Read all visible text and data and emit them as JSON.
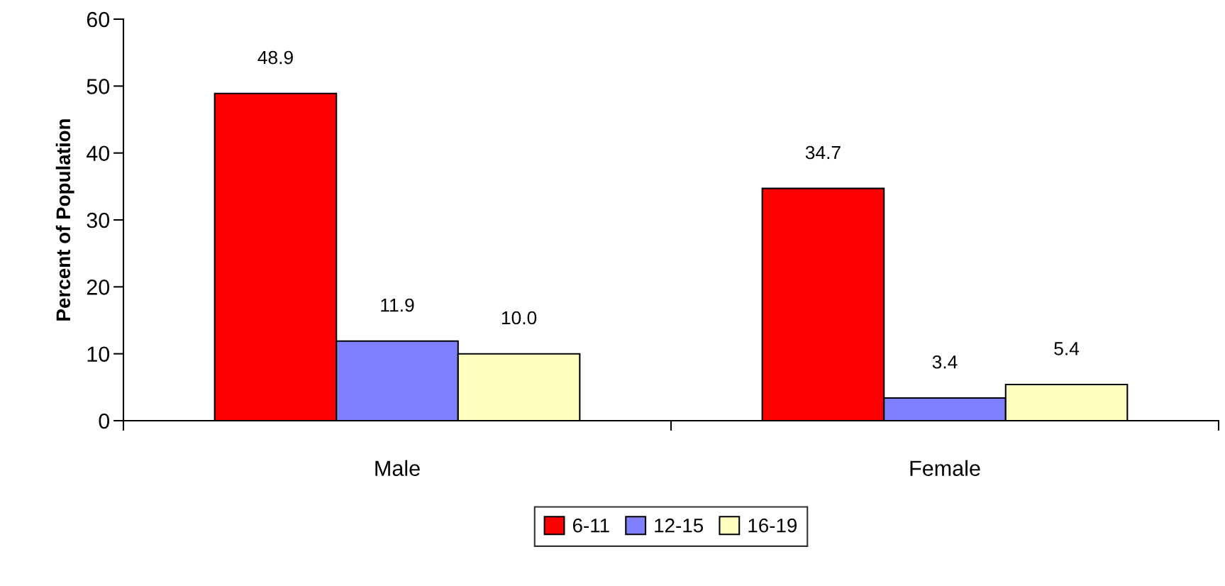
{
  "chart_data": {
    "type": "bar",
    "ylabel": "Percent of Population",
    "categories": [
      "Male",
      "Female"
    ],
    "series": [
      {
        "name": "6-11",
        "color": "#ff0000",
        "values": [
          48.9,
          34.7
        ],
        "value_labels": [
          "48.9",
          "34.7"
        ]
      },
      {
        "name": "12-15",
        "color": "#8080ff",
        "values": [
          11.9,
          3.4
        ],
        "value_labels": [
          "11.9",
          "3.4"
        ]
      },
      {
        "name": "16-19",
        "color": "#ffffc0",
        "values": [
          10.0,
          5.4
        ],
        "value_labels": [
          "10.0",
          "5.4"
        ]
      }
    ],
    "ylim": [
      0,
      60
    ],
    "yticks": [
      0,
      10,
      20,
      30,
      40,
      50,
      60
    ],
    "legend": "bottom",
    "grid": false
  }
}
